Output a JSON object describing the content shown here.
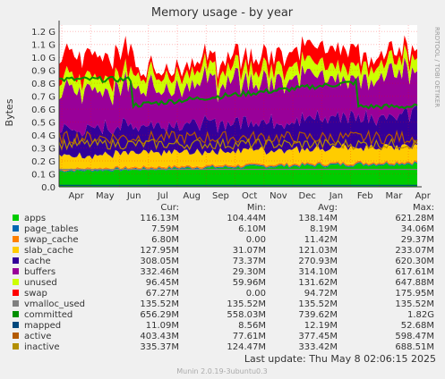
{
  "chart_data": {
    "type": "area",
    "title": "Memory usage - by year",
    "ylabel": "Bytes",
    "side_label": "RRDTOOL / TOBI OETIKER",
    "ylim": [
      0,
      1.25
    ],
    "y_unit_note": "values in G (10^9 bytes)",
    "y_ticks": [
      "0.0",
      "0.1 G",
      "0.2 G",
      "0.3 G",
      "0.4 G",
      "0.5 G",
      "0.6 G",
      "0.7 G",
      "0.8 G",
      "0.9 G",
      "1.0 G",
      "1.1 G",
      "1.2 G"
    ],
    "x_ticks": [
      "Apr",
      "May",
      "Jun",
      "Jul",
      "Aug",
      "Sep",
      "Oct",
      "Nov",
      "Dec",
      "Jan",
      "Feb",
      "Mar",
      "Apr"
    ],
    "grid": true,
    "legend_columns": [
      "Cur:",
      "Min:",
      "Avg:",
      "Max:"
    ],
    "series": [
      {
        "name": "apps",
        "color": "#00cc00",
        "cur": "116.13M",
        "min": "104.44M",
        "avg": "138.14M",
        "max": "621.28M",
        "level_start": 0.12,
        "level_end": 0.18
      },
      {
        "name": "page_tables",
        "color": "#0066b3",
        "cur": "7.59M",
        "min": "6.10M",
        "avg": "8.19M",
        "max": "34.06M",
        "level_start": 0.008,
        "level_end": 0.008
      },
      {
        "name": "swap_cache",
        "color": "#ff8000",
        "cur": "6.80M",
        "min": "0.00",
        "avg": "11.42M",
        "max": "29.37M",
        "level_start": 0.012,
        "level_end": 0.012
      },
      {
        "name": "slab_cache",
        "color": "#ffcc00",
        "cur": "127.95M",
        "min": "31.07M",
        "avg": "121.03M",
        "max": "233.07M",
        "level_start": 0.1,
        "level_end": 0.12
      },
      {
        "name": "cache",
        "color": "#330099",
        "cur": "308.05M",
        "min": "73.37M",
        "avg": "270.93M",
        "max": "620.30M",
        "level_start": 0.2,
        "level_end": 0.25
      },
      {
        "name": "buffers",
        "color": "#990099",
        "cur": "332.46M",
        "min": "29.30M",
        "avg": "314.10M",
        "max": "617.61M",
        "level_start": 0.3,
        "level_end": 0.33
      },
      {
        "name": "unused",
        "color": "#ccff00",
        "cur": "96.45M",
        "min": "59.96M",
        "avg": "131.62M",
        "max": "647.88M",
        "level_start": 0.1,
        "level_end": 0.1
      },
      {
        "name": "swap",
        "color": "#ff0000",
        "cur": "67.27M",
        "min": "0.00",
        "avg": "94.72M",
        "max": "175.95M",
        "level_start": 0.0,
        "level_end": 0.175
      },
      {
        "name": "vmalloc_used",
        "color": "#808080",
        "cur": "135.52M",
        "min": "135.52M",
        "avg": "135.52M",
        "max": "135.52M"
      },
      {
        "name": "committed",
        "color": "#008f00",
        "cur": "656.29M",
        "min": "558.03M",
        "avg": "739.62M",
        "max": "1.82G"
      },
      {
        "name": "mapped",
        "color": "#00487d",
        "cur": "11.09M",
        "min": "8.56M",
        "avg": "12.19M",
        "max": "52.68M"
      },
      {
        "name": "active",
        "color": "#b35a00",
        "cur": "403.43M",
        "min": "77.61M",
        "avg": "377.45M",
        "max": "598.47M"
      },
      {
        "name": "inactive",
        "color": "#b38f00",
        "cur": "335.37M",
        "min": "124.47M",
        "avg": "333.42M",
        "max": "688.51M"
      }
    ],
    "last_update": "Last update:  Thu May  8 02:06:15 2025",
    "footer": "Munin 2.0.19-3ubuntu0.3"
  }
}
